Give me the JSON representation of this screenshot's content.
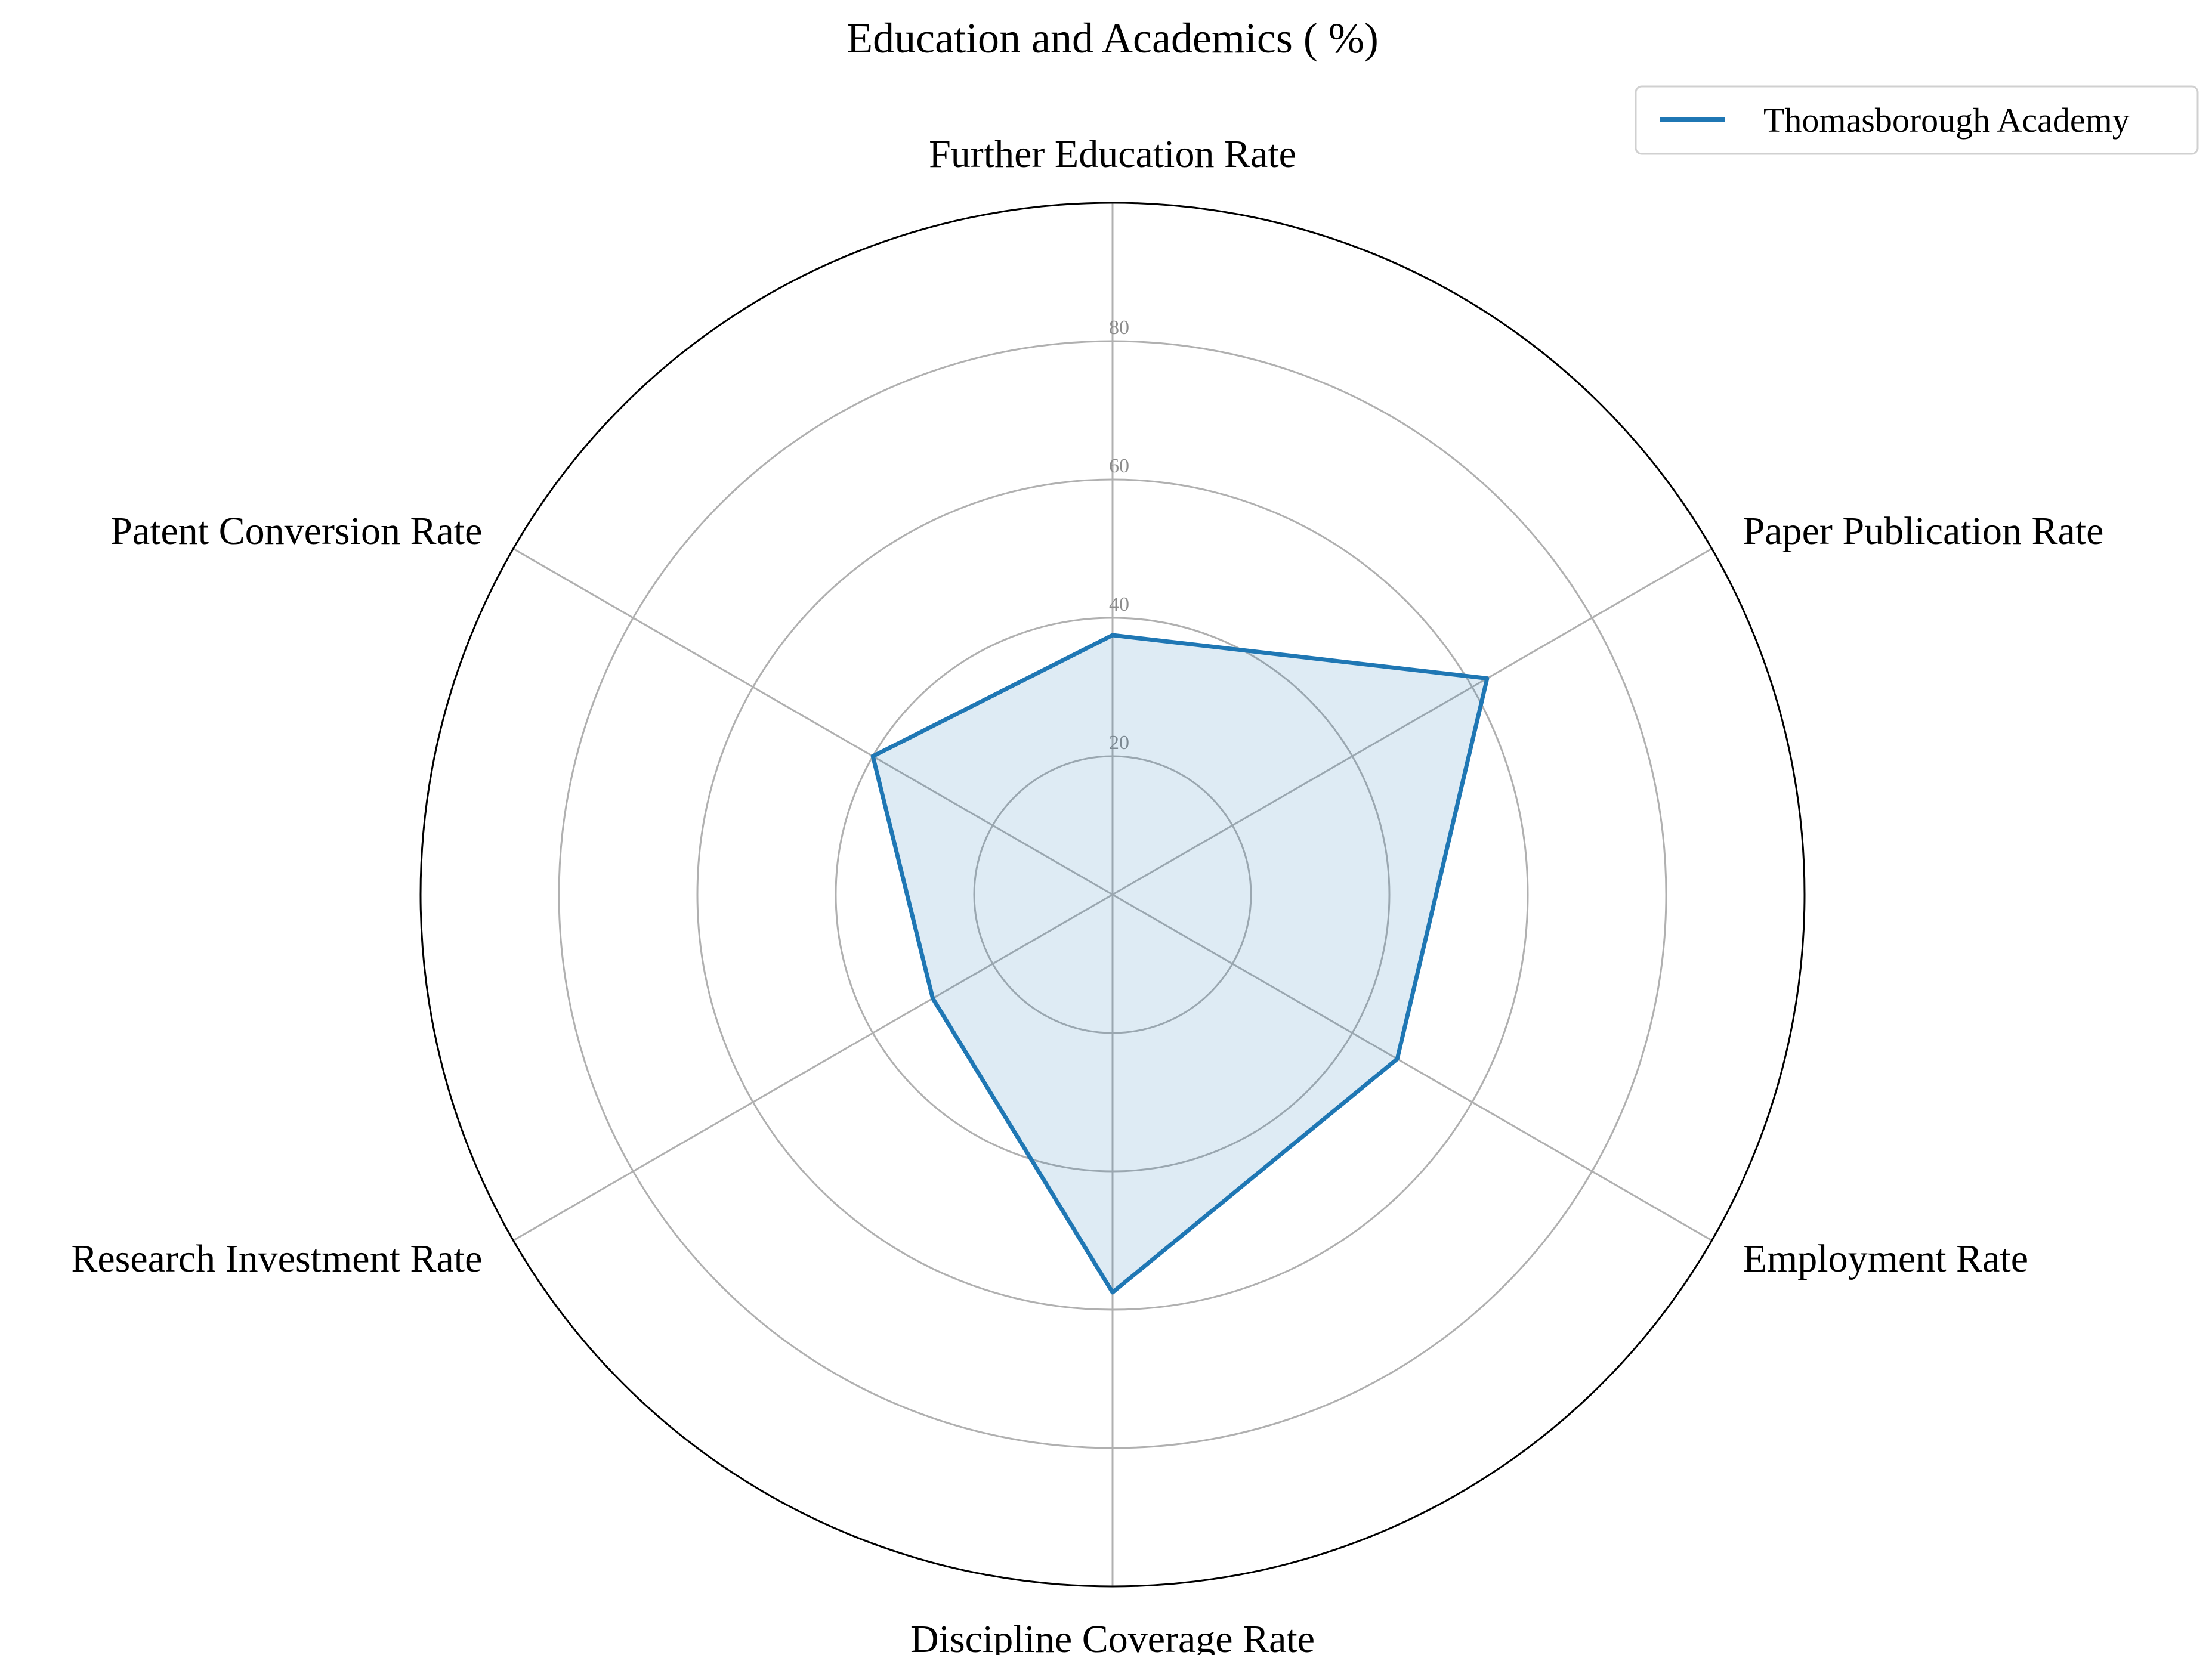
{
  "chart_data": {
    "type": "radar",
    "title": "Education and Academics ( %)",
    "categories": [
      "Further Education Rate",
      "Paper Publication Rate",
      "Employment Rate",
      "Discipline Coverage Rate",
      "Research Investment Rate",
      "Patent Conversion Rate"
    ],
    "series": [
      {
        "name": "Thomasborough Academy",
        "values": [
          37.5,
          62.5,
          47.5,
          57.5,
          30,
          40
        ]
      }
    ],
    "rlim": [
      0,
      100
    ],
    "rticks": [
      20,
      40,
      60,
      80
    ],
    "rtick_labels": [
      "20",
      "40",
      "60",
      "80"
    ],
    "grid": true,
    "legend_position": "top-right",
    "colors": {
      "series_line": "#1f77b4",
      "series_fill": "#1f77b4",
      "grid": "#b0b0b0",
      "outer_frame": "#000000",
      "tick_label": "#8c8c8c"
    }
  }
}
